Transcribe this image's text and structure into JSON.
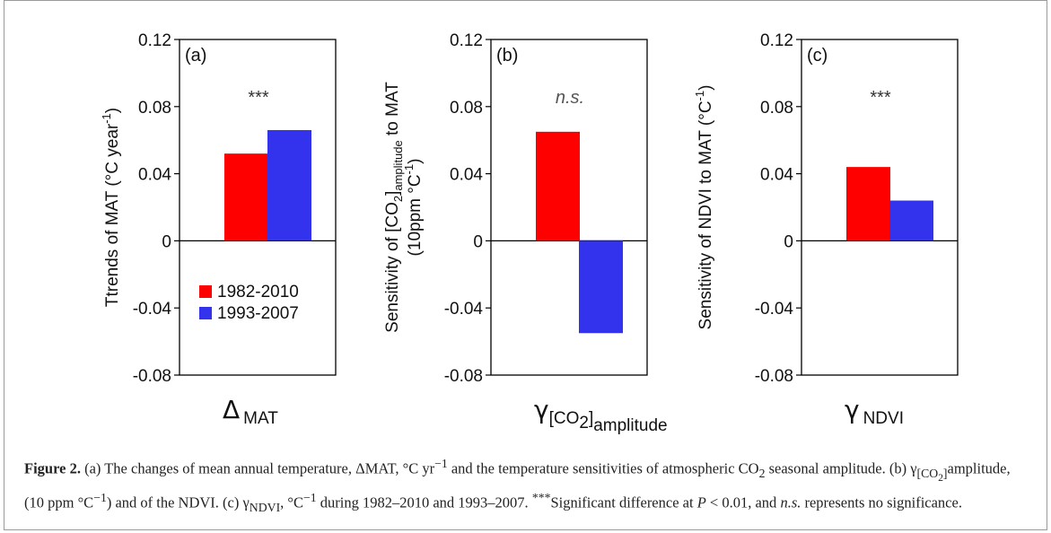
{
  "chart_data": [
    {
      "type": "bar",
      "panel_label": "(a)",
      "ylabel": "Ttrends of MAT (°C year",
      "ylabel_sup": "-1",
      "ylabel_end": ")",
      "ylim": [
        -0.08,
        0.12
      ],
      "yticks": [
        "0.12",
        "0.08",
        "0.04",
        "0",
        "-0.04",
        "-0.08"
      ],
      "xsymbol": "Δ",
      "xsubscript": "MAT",
      "significance": "***",
      "significance_italic": false,
      "series": [
        {
          "name": "1982-2010",
          "values": [
            0.052
          ]
        },
        {
          "name": "1993-2007",
          "values": [
            0.066
          ]
        }
      ],
      "legend": {
        "placement": "bottom-left",
        "entries": [
          "1982-2010",
          "1993-2007"
        ]
      }
    },
    {
      "type": "bar",
      "panel_label": "(b)",
      "ylabel": "Sensitivity of [CO",
      "ylabel_sub1": "2",
      "ylabel_mid": "]",
      "ylabel_sub2": "amplitude",
      "ylabel_end": " to MAT",
      "ylabel2": "(10ppm °C",
      "ylabel2_sup": "-1",
      "ylabel2_end": ")",
      "ylim": [
        -0.08,
        0.12
      ],
      "yticks": [
        "0.12",
        "0.08",
        "0.04",
        "0",
        "-0.04",
        "-0.08"
      ],
      "xsymbol": "γ",
      "xsubscript": "[CO",
      "xsubscript_sub": "2",
      "xsubscript_end": "]",
      "xsubscript_sub2": "amplitude",
      "significance": "n.s.",
      "significance_italic": true,
      "series": [
        {
          "name": "1982-2010",
          "values": [
            0.065
          ]
        },
        {
          "name": "1993-2007",
          "values": [
            -0.055
          ]
        }
      ]
    },
    {
      "type": "bar",
      "panel_label": "(c)",
      "ylabel": "Sensitivity of NDVI to MAT (°C",
      "ylabel_sup": "-1",
      "ylabel_end": ")",
      "ylim": [
        -0.08,
        0.12
      ],
      "yticks": [
        "0.12",
        "0.08",
        "0.04",
        "0",
        "-0.04",
        "-0.08"
      ],
      "xsymbol": "γ",
      "xsubscript": "NDVI",
      "significance": "***",
      "significance_italic": false,
      "series": [
        {
          "name": "1982-2010",
          "values": [
            0.044
          ]
        },
        {
          "name": "1993-2007",
          "values": [
            0.024
          ]
        }
      ]
    }
  ],
  "colors": {
    "series_1": "#ff0000",
    "series_2": "#3333ee"
  },
  "caption": {
    "figure_label": "Figure 2.",
    "part1": " (a) The changes of mean annual temperature, ΔMAT, °C yr",
    "part1_sup": "−1",
    "part2": " and the temperature sensitivities of atmospheric CO",
    "part2_sub": "2",
    "part3": " seasonal amplitude. (b) γ",
    "part3_sub": "[CO",
    "part3_sub_sub": "2",
    "part3_sub_end": "]",
    "part4": "amplitude, (10 ppm °C",
    "part4_sup": "−1",
    "part5": ") and of the NDVI. (c) γ",
    "part5_sub": "NDVI",
    "part6": ", °C",
    "part6_sup": "−1",
    "part7": " during 1982–2010 and 1993–2007. ",
    "part7_sup": "***",
    "part8": "Significant difference at ",
    "part8_p": "P",
    "part9": " < 0.01, and ",
    "part9_ns": "n.s.",
    "part10": " represents no significance."
  }
}
